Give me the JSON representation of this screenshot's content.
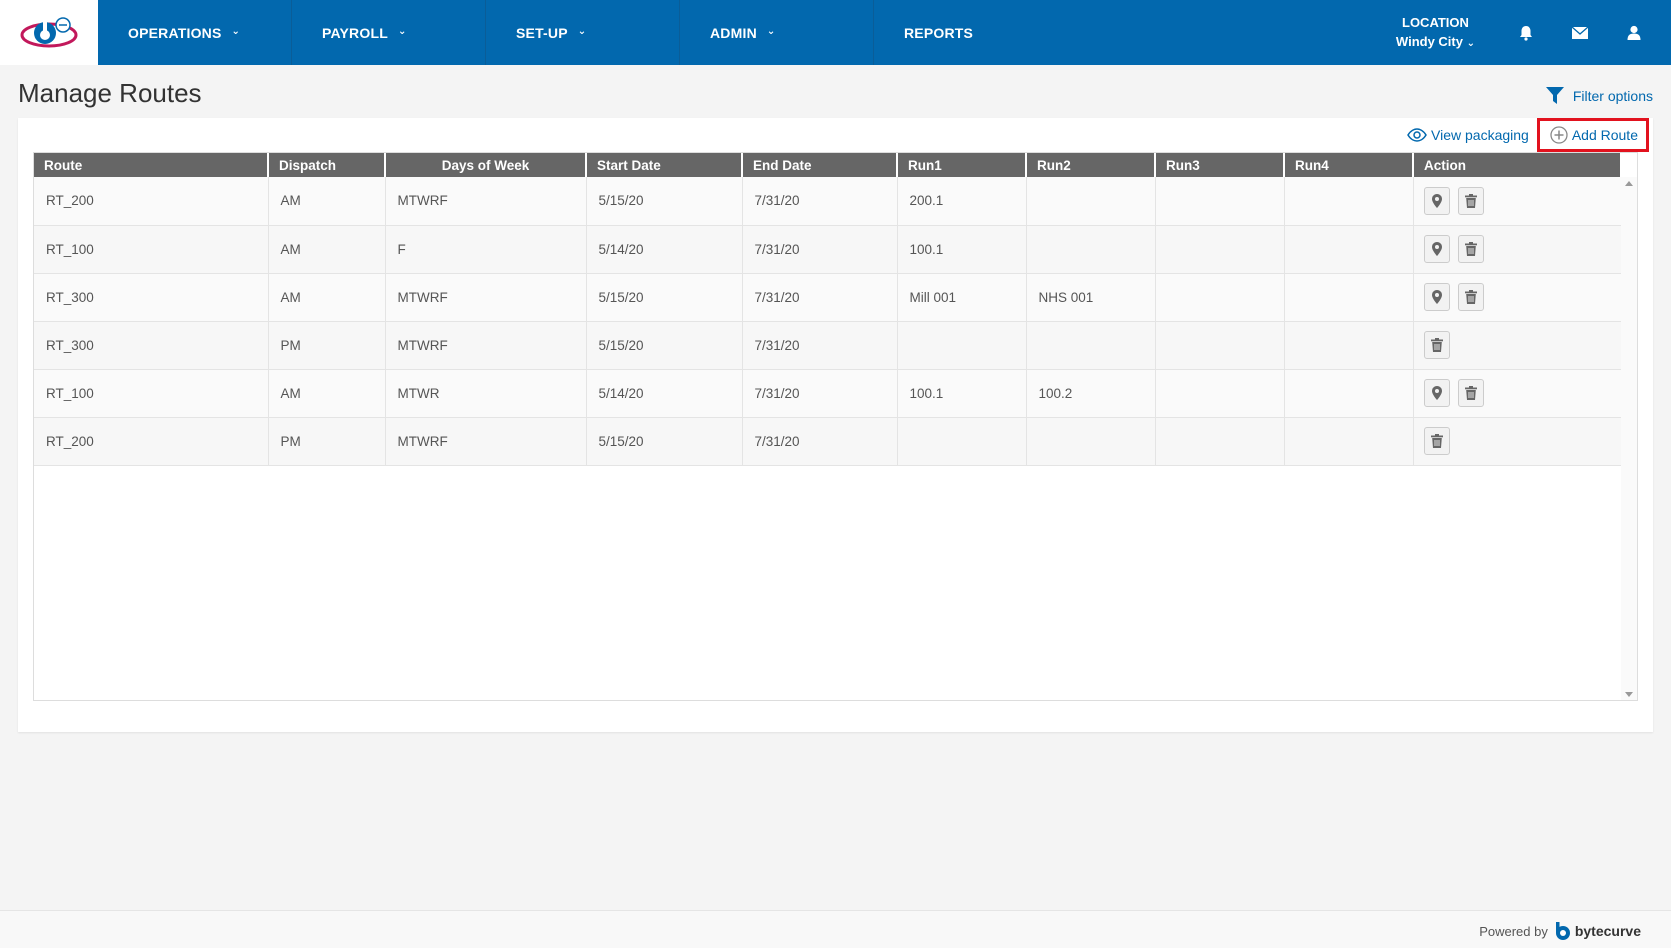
{
  "nav": {
    "items": [
      {
        "label": "OPERATIONS",
        "dropdown": true
      },
      {
        "label": "PAYROLL",
        "dropdown": true
      },
      {
        "label": "SET-UP",
        "dropdown": true
      },
      {
        "label": "ADMIN",
        "dropdown": true
      },
      {
        "label": "REPORTS",
        "dropdown": false
      }
    ],
    "location_label": "LOCATION",
    "location_value": "Windy City",
    "icons": [
      "bell-icon",
      "envelope-icon",
      "user-icon"
    ]
  },
  "page": {
    "title": "Manage Routes",
    "filter_options": "Filter options",
    "view_packaging": "View packaging",
    "add_route": "Add Route"
  },
  "table": {
    "columns": [
      "Route",
      "Dispatch",
      "Days of Week",
      "Start Date",
      "End Date",
      "Run1",
      "Run2",
      "Run3",
      "Run4",
      "Action"
    ],
    "rows": [
      {
        "route": "RT_200",
        "dispatch": "AM",
        "days": "MTWRF",
        "start": "5/15/20",
        "end": "7/31/20",
        "run1": "200.1",
        "run2": "",
        "run3": "",
        "run4": "",
        "has_location": true
      },
      {
        "route": "RT_100",
        "dispatch": "AM",
        "days": "F",
        "start": "5/14/20",
        "end": "7/31/20",
        "run1": "100.1",
        "run2": "",
        "run3": "",
        "run4": "",
        "has_location": true
      },
      {
        "route": "RT_300",
        "dispatch": "AM",
        "days": "MTWRF",
        "start": "5/15/20",
        "end": "7/31/20",
        "run1": "Mill 001",
        "run2": "NHS 001",
        "run3": "",
        "run4": "",
        "has_location": true
      },
      {
        "route": "RT_300",
        "dispatch": "PM",
        "days": "MTWRF",
        "start": "5/15/20",
        "end": "7/31/20",
        "run1": "",
        "run2": "",
        "run3": "",
        "run4": "",
        "has_location": false
      },
      {
        "route": "RT_100",
        "dispatch": "AM",
        "days": "MTWR",
        "start": "5/14/20",
        "end": "7/31/20",
        "run1": "100.1",
        "run2": "100.2",
        "run3": "",
        "run4": "",
        "has_location": true
      },
      {
        "route": "RT_200",
        "dispatch": "PM",
        "days": "MTWRF",
        "start": "5/15/20",
        "end": "7/31/20",
        "run1": "",
        "run2": "",
        "run3": "",
        "run4": "",
        "has_location": false
      }
    ]
  },
  "footer": {
    "powered_by": "Powered by",
    "brand": "bytecurve"
  },
  "colors": {
    "primary": "#0268ae",
    "header_gray": "#666666",
    "highlight_red": "#e2121e"
  }
}
